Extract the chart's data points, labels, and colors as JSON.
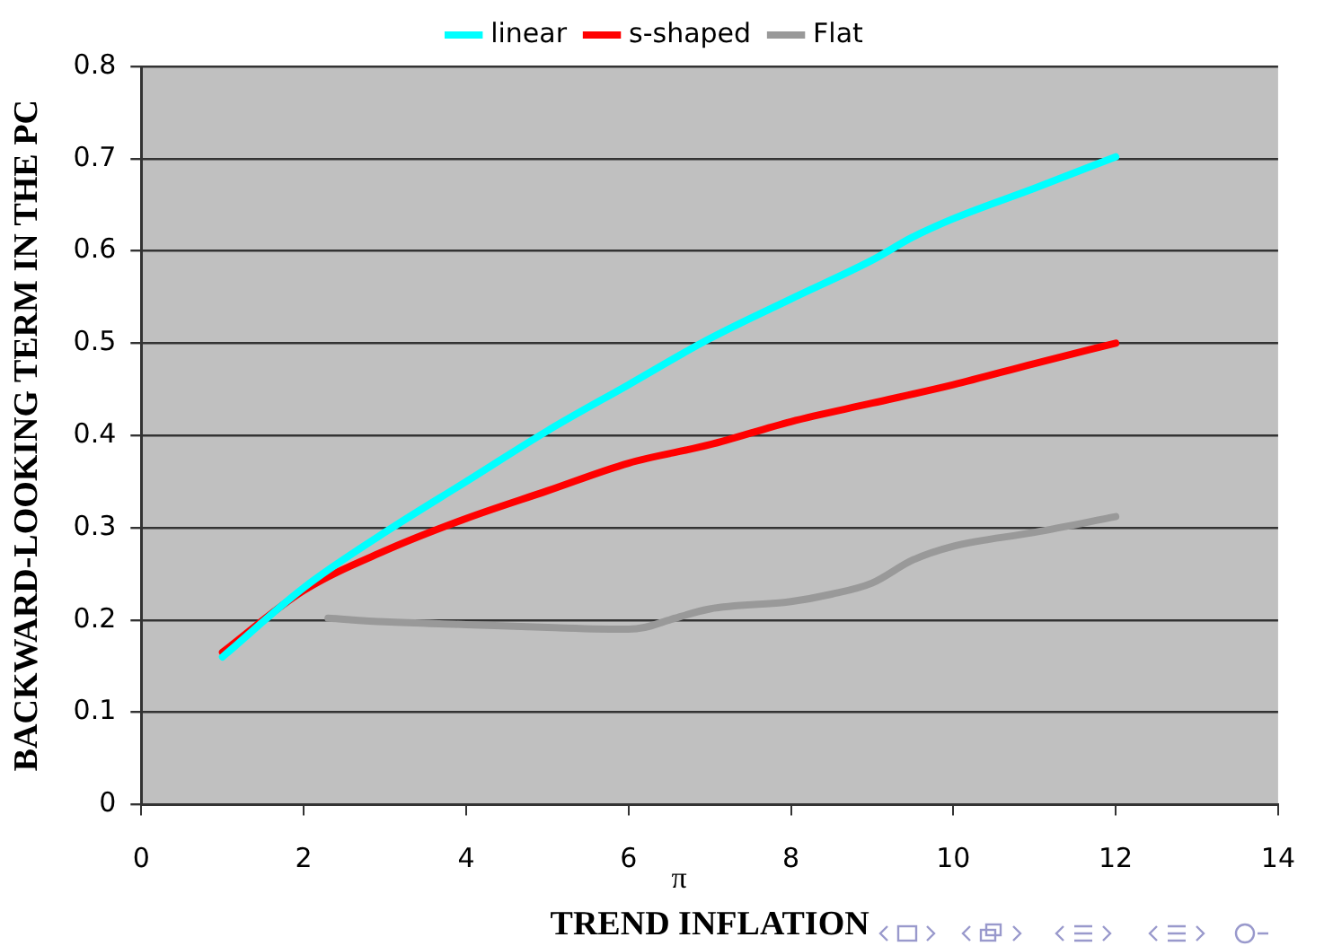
{
  "chart_data": {
    "type": "line",
    "xlabel": "TREND INFLATION",
    "ylabel": "BACKWARD-LOOKING TERM IN THE PC",
    "xlim": [
      0,
      14
    ],
    "xticks": [
      0,
      2,
      4,
      6,
      8,
      10,
      12,
      14
    ],
    "ylim": [
      0,
      0.8
    ],
    "yticks": [
      0,
      0.1,
      0.2,
      0.3,
      0.4,
      0.5,
      0.6,
      0.7,
      0.8
    ],
    "grid": "y",
    "legend": "top",
    "marker": "none",
    "line_style": "solid",
    "annotations": [
      "π"
    ],
    "series": [
      {
        "name": "linear",
        "color": "#00ffff",
        "x": [
          1,
          2,
          3,
          4,
          5,
          6,
          7,
          8,
          9,
          9.5,
          10,
          11,
          12
        ],
        "values": [
          0.16,
          0.235,
          0.295,
          0.35,
          0.405,
          0.455,
          0.505,
          0.548,
          0.59,
          0.615,
          0.635,
          0.668,
          0.702
        ]
      },
      {
        "name": "s-shaped",
        "color": "#ff0000",
        "x": [
          1,
          2,
          3,
          4,
          5,
          6,
          7,
          8,
          9,
          10,
          11,
          12
        ],
        "values": [
          0.165,
          0.232,
          0.275,
          0.31,
          0.34,
          0.37,
          0.39,
          0.415,
          0.435,
          0.455,
          0.478,
          0.5
        ]
      },
      {
        "name": "Flat",
        "color": "#999999",
        "x": [
          2.3,
          3,
          4,
          5,
          6,
          6.2,
          6.5,
          7,
          8,
          8.5,
          9,
          9.5,
          10,
          11,
          12
        ],
        "values": [
          0.202,
          0.198,
          0.195,
          0.192,
          0.19,
          0.192,
          0.2,
          0.212,
          0.22,
          0.228,
          0.24,
          0.265,
          0.28,
          0.295,
          0.312
        ]
      }
    ]
  }
}
